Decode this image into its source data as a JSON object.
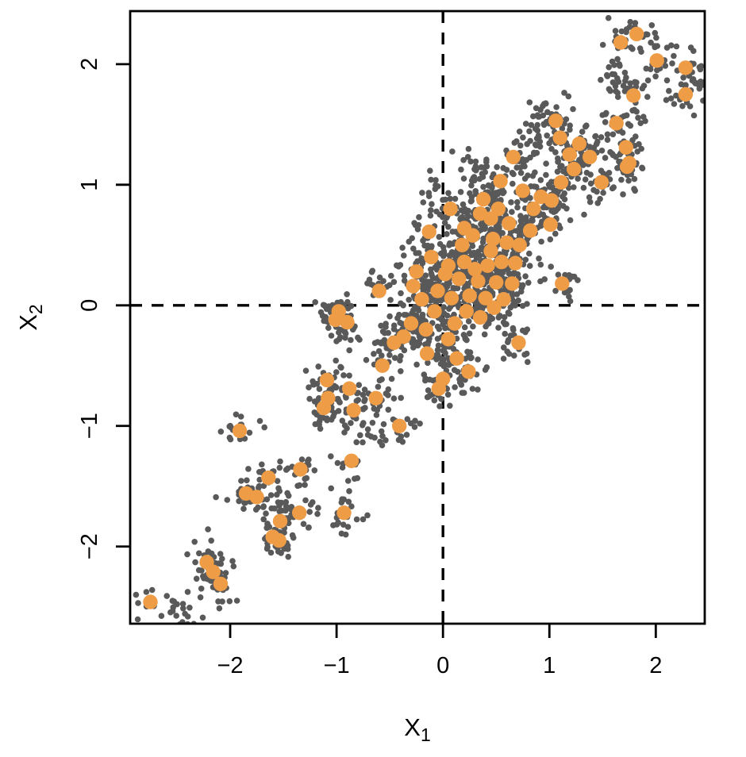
{
  "figure": {
    "background_color": "#ffffff",
    "frame_color": "#000000"
  },
  "chart_data": {
    "type": "scatter",
    "title": "",
    "xlabel": "X",
    "xlabel_sub": "1",
    "ylabel": "X",
    "ylabel_sub": "2",
    "xlim": [
      -2.94,
      2.46
    ],
    "ylim": [
      -2.64,
      2.44
    ],
    "x_ticks": [
      -2,
      -1,
      0,
      1,
      2
    ],
    "y_ticks": [
      -2,
      -1,
      0,
      1,
      2
    ],
    "grid": false,
    "legend": "none",
    "reference_lines": {
      "vertical_x": 0,
      "horizontal_y": 0,
      "style": "dashed",
      "color": "#000000",
      "drawn_under_points": true
    },
    "series": [
      {
        "name": "cluster-centers",
        "marker": "filled-circle",
        "color": "#EF9C47",
        "marker_radius_px": 9.2,
        "points": [
          [
            -2.75,
            -2.46
          ],
          [
            -2.22,
            -2.13
          ],
          [
            -2.16,
            -2.21
          ],
          [
            -2.09,
            -2.31
          ],
          [
            -1.91,
            -1.04
          ],
          [
            -1.85,
            -1.56
          ],
          [
            -1.75,
            -1.59
          ],
          [
            -1.64,
            -1.43
          ],
          [
            -1.53,
            -1.79
          ],
          [
            -1.6,
            -1.92
          ],
          [
            -1.54,
            -1.95
          ],
          [
            -1.35,
            -1.72
          ],
          [
            -1.34,
            -1.36
          ],
          [
            -0.93,
            -1.72
          ],
          [
            -0.86,
            -1.29
          ],
          [
            -1.09,
            -0.62
          ],
          [
            -1.08,
            -0.77
          ],
          [
            -1.12,
            -0.85
          ],
          [
            -0.88,
            -0.69
          ],
          [
            -0.84,
            -0.87
          ],
          [
            -0.63,
            -0.77
          ],
          [
            -0.57,
            -0.5
          ],
          [
            -0.41,
            -1.0
          ],
          [
            -0.46,
            -0.31
          ],
          [
            -0.37,
            -0.26
          ],
          [
            -1.01,
            -0.12
          ],
          [
            -0.98,
            -0.05
          ],
          [
            -0.9,
            -0.14
          ],
          [
            -0.15,
            -0.4
          ],
          [
            0.13,
            -0.44
          ],
          [
            0.24,
            -0.55
          ],
          [
            0.0,
            -0.61
          ],
          [
            -0.04,
            -0.69
          ],
          [
            0.71,
            -0.31
          ],
          [
            -0.16,
            -0.2
          ],
          [
            0.11,
            -0.15
          ],
          [
            0.05,
            -0.28
          ],
          [
            -0.3,
            -0.15
          ],
          [
            -0.08,
            -0.05
          ],
          [
            0.22,
            -0.05
          ],
          [
            0.35,
            -0.1
          ],
          [
            0.48,
            -0.02
          ],
          [
            -0.6,
            0.12
          ],
          [
            -0.28,
            0.16
          ],
          [
            -0.2,
            0.05
          ],
          [
            -0.25,
            0.28
          ],
          [
            -0.13,
            0.61
          ],
          [
            -0.11,
            0.4
          ],
          [
            -0.05,
            0.12
          ],
          [
            0.02,
            0.26
          ],
          [
            0.05,
            0.33
          ],
          [
            0.08,
            0.06
          ],
          [
            0.15,
            0.22
          ],
          [
            0.18,
            0.5
          ],
          [
            0.2,
            0.36
          ],
          [
            0.2,
            0.64
          ],
          [
            0.25,
            0.08
          ],
          [
            0.28,
            0.58
          ],
          [
            0.3,
            0.3
          ],
          [
            0.33,
            0.2
          ],
          [
            0.35,
            0.76
          ],
          [
            0.4,
            0.06
          ],
          [
            0.42,
            0.33
          ],
          [
            0.45,
            0.45
          ],
          [
            0.45,
            0.72
          ],
          [
            0.47,
            0.55
          ],
          [
            0.5,
            0.19
          ],
          [
            0.55,
            0.36
          ],
          [
            0.57,
            0.05
          ],
          [
            0.6,
            0.52
          ],
          [
            0.62,
            0.68
          ],
          [
            0.65,
            0.18
          ],
          [
            0.68,
            0.35
          ],
          [
            0.72,
            0.5
          ],
          [
            0.82,
            0.62
          ],
          [
            0.07,
            0.8
          ],
          [
            0.38,
            0.88
          ],
          [
            0.52,
            0.8
          ],
          [
            0.54,
            1.03
          ],
          [
            0.66,
            1.23
          ],
          [
            0.75,
            0.95
          ],
          [
            0.85,
            0.8
          ],
          [
            0.92,
            0.9
          ],
          [
            1.02,
            0.87
          ],
          [
            1.01,
            0.67
          ],
          [
            1.12,
            0.18
          ],
          [
            1.06,
            1.53
          ],
          [
            1.1,
            1.39
          ],
          [
            1.28,
            1.34
          ],
          [
            1.19,
            1.25
          ],
          [
            1.38,
            1.23
          ],
          [
            1.49,
            1.02
          ],
          [
            1.11,
            1.02
          ],
          [
            1.23,
            1.13
          ],
          [
            1.73,
            1.15
          ],
          [
            1.75,
            1.18
          ],
          [
            1.63,
            1.51
          ],
          [
            1.72,
            1.31
          ],
          [
            1.79,
            1.74
          ],
          [
            1.67,
            2.18
          ],
          [
            1.82,
            2.25
          ],
          [
            2.01,
            2.03
          ],
          [
            2.28,
            1.97
          ],
          [
            2.28,
            1.75
          ]
        ]
      },
      {
        "name": "satellite-points",
        "marker": "filled-circle",
        "color": "#595959",
        "marker_radius_px": 3.8,
        "generated_around_centers": true,
        "seed": 7,
        "per_center_count_min": 14,
        "per_center_count_max": 23,
        "sigma_data_units": 0.09,
        "extra_gray_cluster_centers": [
          [
            2.43,
            1.88
          ],
          [
            1.6,
            1.91
          ],
          [
            0.92,
            1.55
          ],
          [
            0.3,
            1.1
          ],
          [
            -0.05,
            0.95
          ],
          [
            -2.45,
            -2.58
          ],
          [
            0.88,
            1.3
          ],
          [
            -0.7,
            -1.05
          ]
        ]
      }
    ]
  }
}
